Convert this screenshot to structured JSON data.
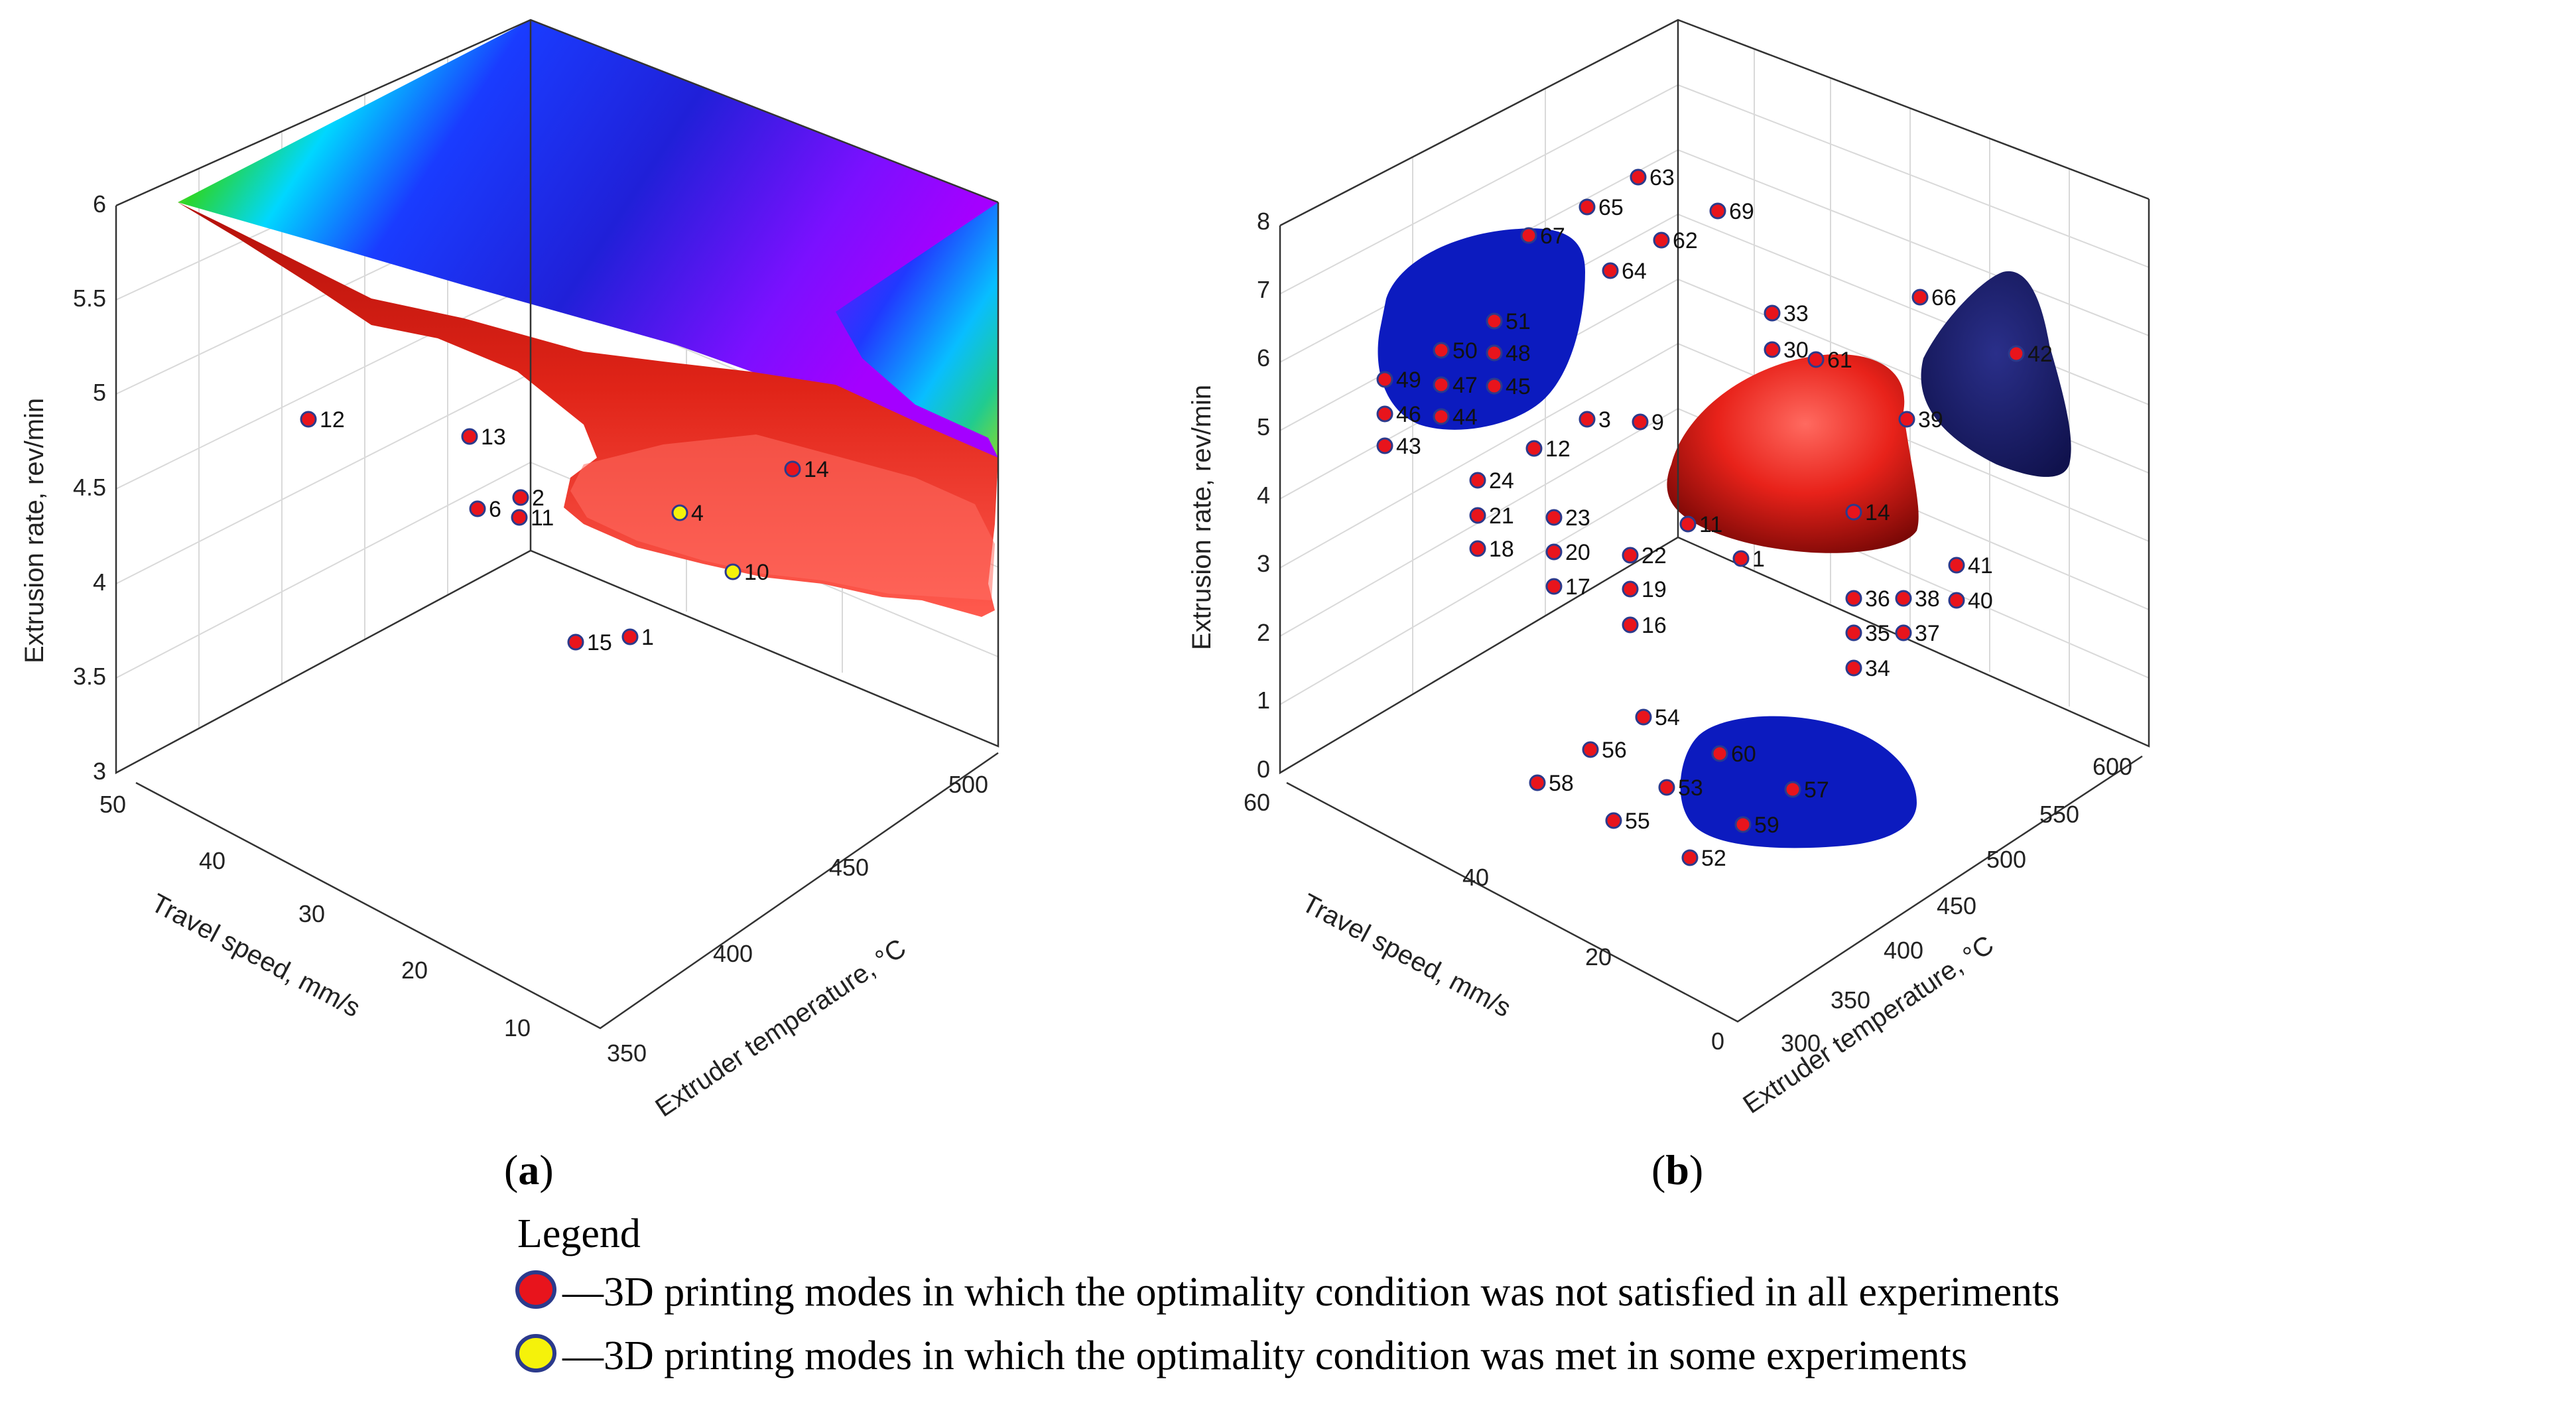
{
  "chart_data": [
    {
      "type": "scatter",
      "panel": "a",
      "caption_letter": "a",
      "xlabel": "Travel speed, mm/s",
      "ylabel": "Extruder temperature, °C",
      "zlabel": "Extrusion rate, rev/min",
      "x_ticks": [
        "10",
        "20",
        "30",
        "40",
        "50"
      ],
      "y_ticks": [
        "350",
        "400",
        "450",
        "500"
      ],
      "z_ticks": [
        "3",
        "3.5",
        "4",
        "4.5",
        "5",
        "5.5",
        "6"
      ],
      "xlim": [
        5,
        50
      ],
      "ylim": [
        350,
        500
      ],
      "zlim": [
        3,
        6
      ],
      "surface": "colored response surface with red optimality region",
      "points": [
        {
          "label": "12",
          "type": "not-satisfied"
        },
        {
          "label": "13",
          "type": "not-satisfied"
        },
        {
          "label": "6",
          "type": "not-satisfied"
        },
        {
          "label": "2",
          "type": "not-satisfied"
        },
        {
          "label": "11",
          "type": "not-satisfied"
        },
        {
          "label": "14",
          "type": "not-satisfied"
        },
        {
          "label": "4",
          "type": "met"
        },
        {
          "label": "15",
          "type": "not-satisfied"
        },
        {
          "label": "1",
          "type": "not-satisfied"
        },
        {
          "label": "10",
          "type": "met"
        }
      ]
    },
    {
      "type": "scatter",
      "panel": "b",
      "caption_letter": "b",
      "xlabel": "Travel speed, mm/s",
      "ylabel": "Extruder temperature, °C",
      "zlabel": "Extrusion rate, rev/min",
      "x_ticks": [
        "0",
        "20",
        "40",
        "60"
      ],
      "y_ticks": [
        "300",
        "350",
        "400",
        "450",
        "500",
        "550",
        "600"
      ],
      "z_ticks": [
        "0",
        "1",
        "2",
        "3",
        "4",
        "5",
        "6",
        "7",
        "8"
      ],
      "xlim": [
        0,
        60
      ],
      "ylim": [
        300,
        600
      ],
      "zlim": [
        0,
        8
      ],
      "surface": "red optimality region with blue projections",
      "points": [
        {
          "label": "63"
        },
        {
          "label": "65"
        },
        {
          "label": "69"
        },
        {
          "label": "67"
        },
        {
          "label": "62"
        },
        {
          "label": "64"
        },
        {
          "label": "33"
        },
        {
          "label": "66"
        },
        {
          "label": "42"
        },
        {
          "label": "51"
        },
        {
          "label": "50"
        },
        {
          "label": "48"
        },
        {
          "label": "49"
        },
        {
          "label": "47"
        },
        {
          "label": "45"
        },
        {
          "label": "46"
        },
        {
          "label": "44"
        },
        {
          "label": "43"
        },
        {
          "label": "3"
        },
        {
          "label": "9"
        },
        {
          "label": "12"
        },
        {
          "label": "24"
        },
        {
          "label": "21"
        },
        {
          "label": "23"
        },
        {
          "label": "18"
        },
        {
          "label": "20"
        },
        {
          "label": "17"
        },
        {
          "label": "22"
        },
        {
          "label": "19"
        },
        {
          "label": "16"
        },
        {
          "label": "14"
        },
        {
          "label": "11"
        },
        {
          "label": "1"
        },
        {
          "label": "41"
        },
        {
          "label": "36"
        },
        {
          "label": "38"
        },
        {
          "label": "40"
        },
        {
          "label": "35"
        },
        {
          "label": "37"
        },
        {
          "label": "34"
        },
        {
          "label": "54"
        },
        {
          "label": "56"
        },
        {
          "label": "60"
        },
        {
          "label": "58"
        },
        {
          "label": "53"
        },
        {
          "label": "57"
        },
        {
          "label": "55"
        },
        {
          "label": "59"
        },
        {
          "label": "52"
        },
        {
          "label": "30"
        },
        {
          "label": "61"
        },
        {
          "label": "39"
        }
      ]
    }
  ],
  "legend": {
    "title": "Legend",
    "items": [
      {
        "color": "#e8141c",
        "edge": "#2b3a8c",
        "text": "—3D printing modes in which the optimality condition was not satisfied in all experiments"
      },
      {
        "color": "#f5f20a",
        "edge": "#2b3a8c",
        "text": "—3D printing modes in which the optimality condition was met in some experiments"
      }
    ]
  }
}
